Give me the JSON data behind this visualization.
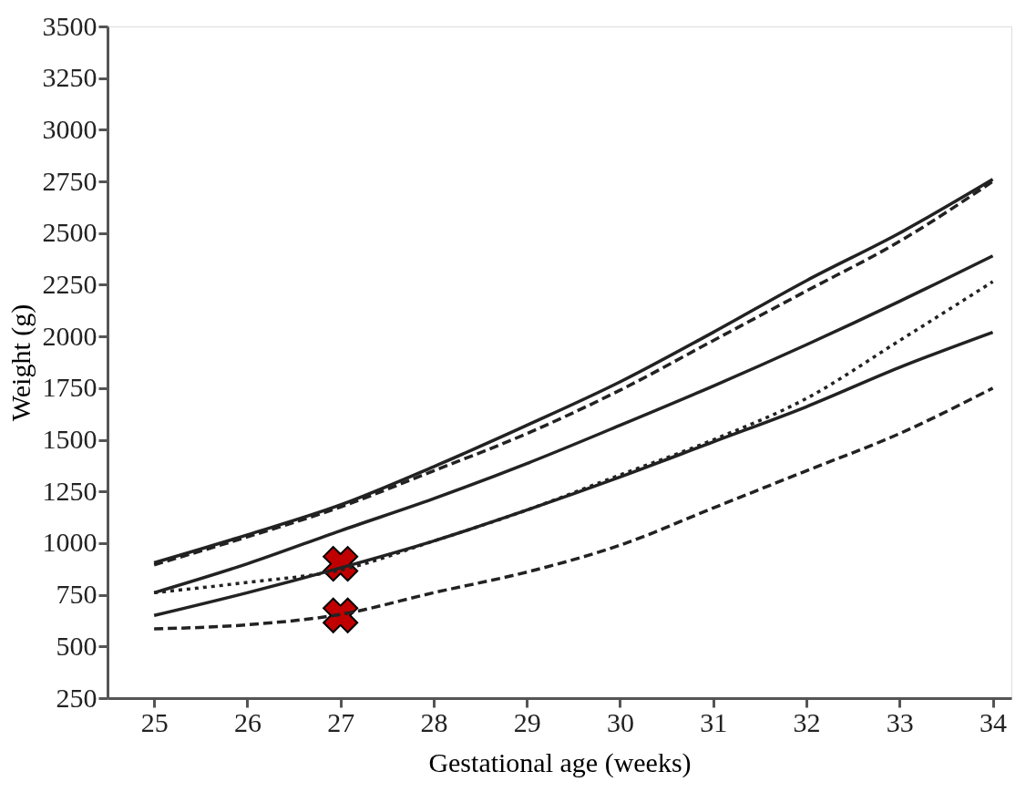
{
  "chart_data": {
    "type": "line",
    "xlabel": "Gestational age (weeks)",
    "ylabel": "Weight (g)",
    "x": [
      25,
      26,
      27,
      28,
      29,
      30,
      31,
      32,
      33,
      34
    ],
    "xlim": [
      24.5,
      34.2
    ],
    "xticks": [
      25,
      26,
      27,
      28,
      29,
      30,
      31,
      32,
      33,
      34
    ],
    "grid": false,
    "ylim": [
      250,
      3500
    ],
    "yticks": [
      250,
      500,
      750,
      1000,
      1250,
      1500,
      1750,
      2000,
      2250,
      2500,
      2750,
      3000,
      3250,
      3500
    ],
    "series": [
      {
        "color": "#222222",
        "line_style": "solid",
        "values": [
          905,
          1040,
          1185,
          1370,
          1570,
          1780,
          2020,
          2270,
          2500,
          2760
        ]
      },
      {
        "color": "#222222",
        "line_style": "dashed",
        "values": [
          895,
          1030,
          1175,
          1350,
          1530,
          1740,
          1980,
          2220,
          2460,
          2750
        ]
      },
      {
        "color": "#222222",
        "line_style": "solid",
        "values": [
          760,
          900,
          1060,
          1215,
          1385,
          1570,
          1760,
          1960,
          2170,
          2390
        ]
      },
      {
        "color": "#222222",
        "line_style": "dotted",
        "values": [
          760,
          810,
          870,
          1010,
          1160,
          1330,
          1500,
          1700,
          1980,
          2265
        ]
      },
      {
        "color": "#222222",
        "line_style": "solid",
        "values": [
          650,
          760,
          880,
          1010,
          1160,
          1320,
          1490,
          1660,
          1850,
          2020
        ]
      },
      {
        "color": "#222222",
        "line_style": "dashed",
        "values": [
          585,
          605,
          655,
          760,
          860,
          990,
          1170,
          1350,
          1530,
          1750
        ]
      },
      {
        "type": "scatter",
        "color": "#c00000",
        "marker": "cross",
        "x": [
          27,
          27
        ],
        "values": [
          900,
          650
        ]
      }
    ]
  }
}
